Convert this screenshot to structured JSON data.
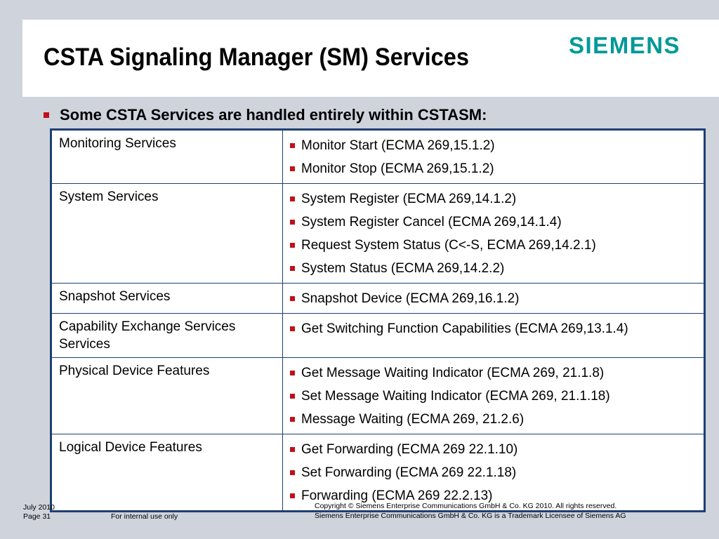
{
  "title": "CSTA Signaling Manager (SM) Services",
  "logo": {
    "text": "SIEMENS",
    "color": "#009999"
  },
  "bullet_color": "#c0101a",
  "border_color": "#1d3f72",
  "intro": "Some CSTA Services are handled entirely within CSTASM:",
  "rows": [
    {
      "category": "Monitoring Services",
      "items": [
        "Monitor Start (ECMA 269,15.1.2)",
        "Monitor Stop (ECMA 269,15.1.2)"
      ]
    },
    {
      "category": "System Services",
      "items": [
        "System Register (ECMA 269,14.1.2)",
        "System Register Cancel (ECMA 269,14.1.4)",
        "Request System Status (C<-S, ECMA 269,14.2.1)",
        "System Status (ECMA 269,14.2.2)"
      ]
    },
    {
      "category": "Snapshot Services",
      "items": [
        "Snapshot Device (ECMA 269,16.1.2)"
      ]
    },
    {
      "category": "Capability Exchange Services Services",
      "items": [
        "Get Switching Function Capabilities (ECMA 269,13.1.4)"
      ]
    },
    {
      "category": "Physical Device Features",
      "items": [
        "Get Message Waiting Indicator (ECMA 269, 21.1.8)",
        "Set Message Waiting Indicator (ECMA 269, 21.1.18)",
        "Message Waiting (ECMA 269, 21.2.6)"
      ]
    },
    {
      "category": "Logical Device Features",
      "items": [
        "Get Forwarding (ECMA 269 22.1.10)",
        "Set Forwarding (ECMA 269 22.1.18)",
        "Forwarding (ECMA 269 22.2.13)"
      ]
    }
  ],
  "footer": {
    "date": "July 2010",
    "page": "Page 31",
    "internal": "For internal use only",
    "copyright": "Copyright © Siemens Enterprise Communications GmbH & Co. KG 2010. All rights reserved.",
    "trademark": "Siemens Enterprise Communications GmbH & Co. KG is a Trademark Licensee of Siemens AG"
  }
}
